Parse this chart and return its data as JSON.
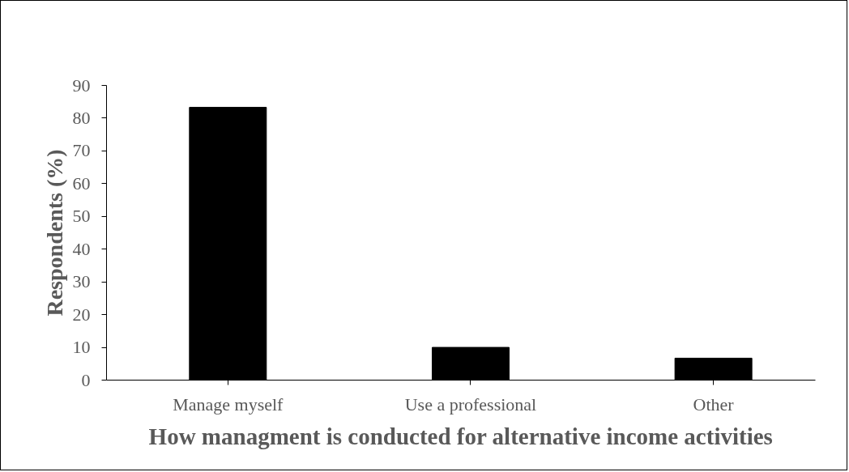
{
  "chart_data": {
    "type": "bar",
    "xlabel": "How managment is conducted for alternative income activities",
    "ylabel": "Respondents (%)",
    "categories": [
      "Manage myself",
      "Use a professional",
      "Other"
    ],
    "values": [
      83.3,
      10,
      6.7
    ],
    "color": "#000000",
    "ylim": [
      0,
      90
    ],
    "yticks": [
      0,
      10,
      20,
      30,
      40,
      50,
      60,
      70,
      80,
      90
    ]
  }
}
